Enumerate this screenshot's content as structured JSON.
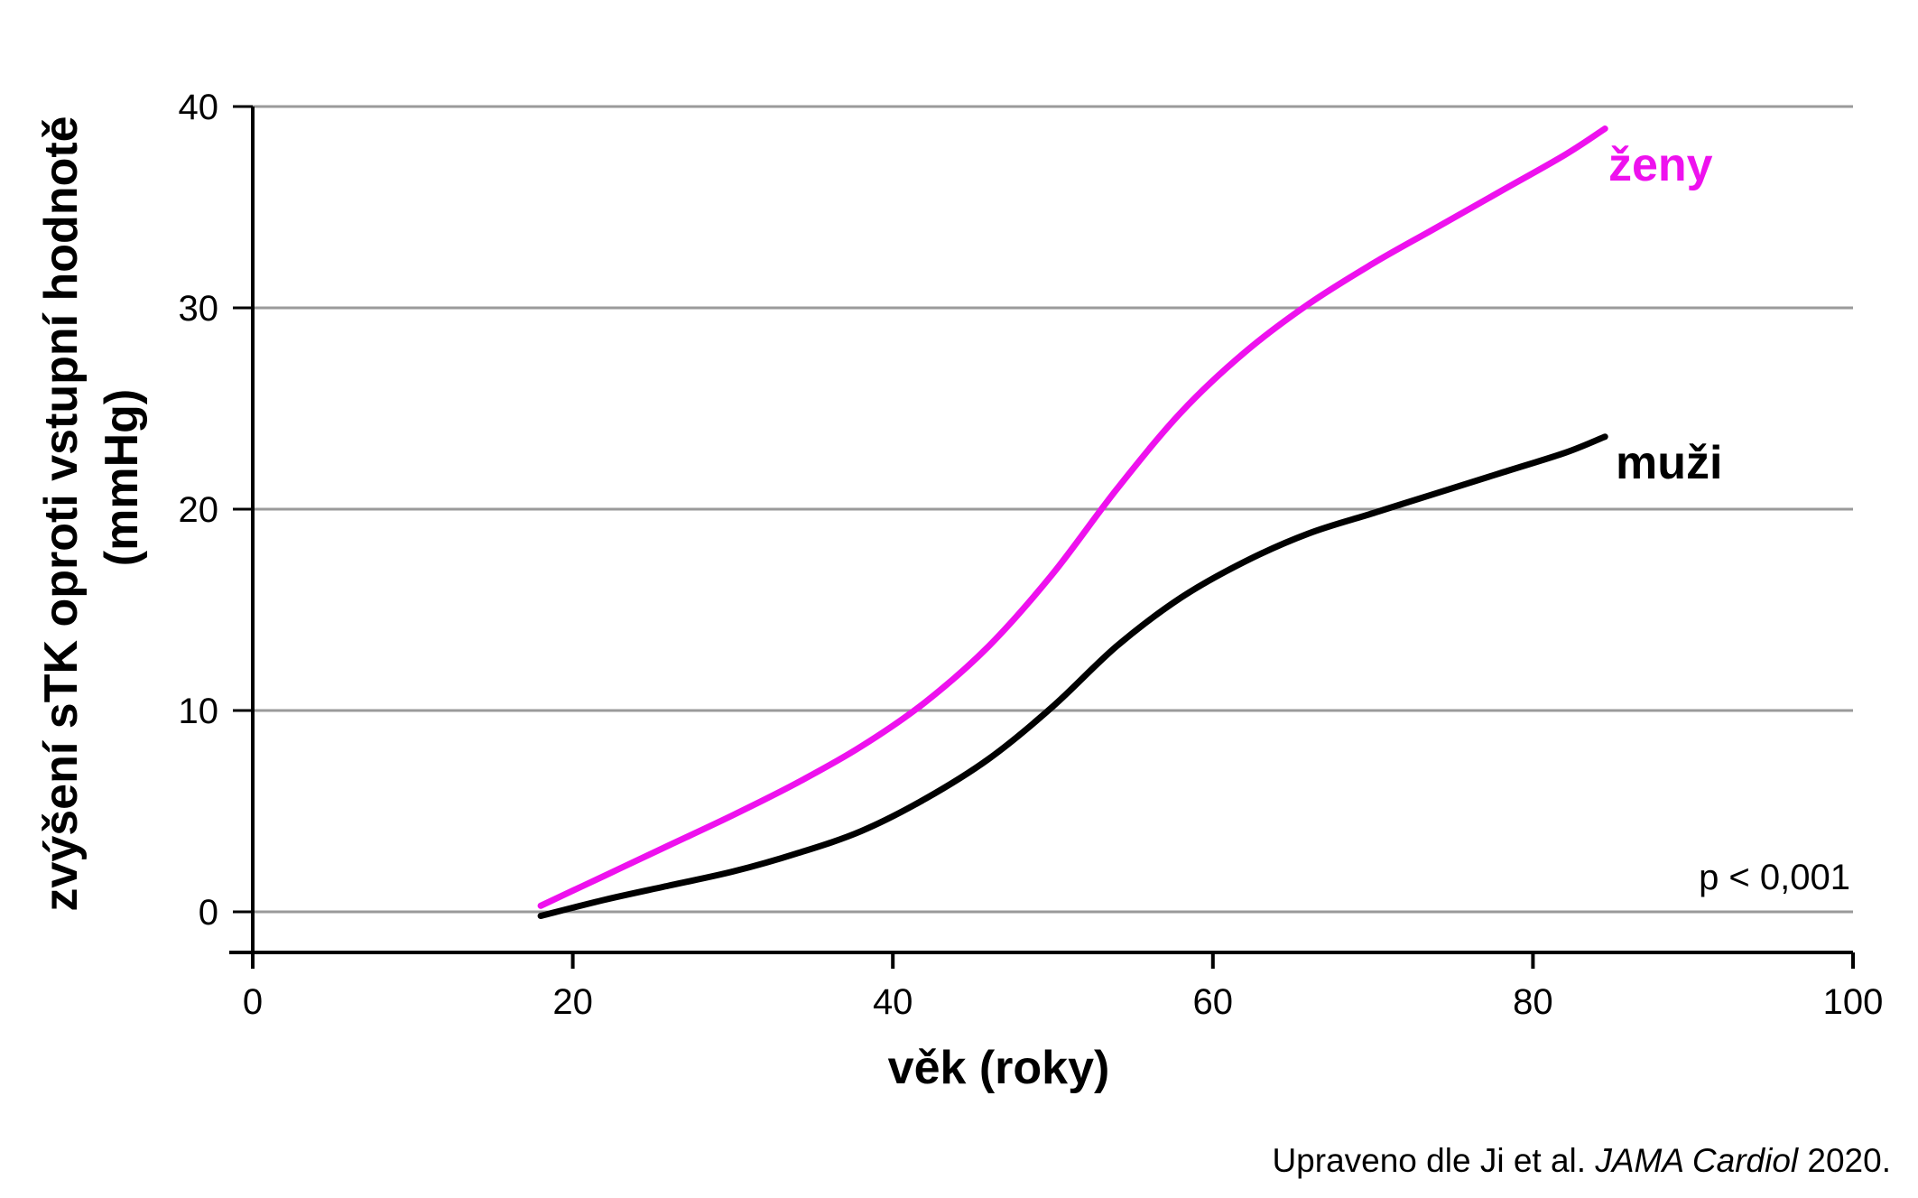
{
  "chart_data": {
    "type": "line",
    "xlabel": "věk (roky)",
    "ylabel": [
      "zvýšení sTK oproti vstupní hodnotě",
      "(mmHg)"
    ],
    "xlim": [
      0,
      100
    ],
    "ylim": [
      -2,
      40
    ],
    "x_ticks": [
      "0",
      "20",
      "40",
      "60",
      "80",
      "100"
    ],
    "y_ticks": [
      "0",
      "10",
      "20",
      "30",
      "40"
    ],
    "grid": "horizontal",
    "series": [
      {
        "name": "ženy",
        "color": "#ee11ee",
        "points": [
          [
            18,
            0.3
          ],
          [
            22,
            1.8
          ],
          [
            26,
            3.3
          ],
          [
            30,
            4.8
          ],
          [
            34,
            6.4
          ],
          [
            38,
            8.2
          ],
          [
            42,
            10.4
          ],
          [
            46,
            13.2
          ],
          [
            50,
            16.8
          ],
          [
            54,
            21.0
          ],
          [
            58,
            24.8
          ],
          [
            62,
            27.8
          ],
          [
            66,
            30.2
          ],
          [
            70,
            32.2
          ],
          [
            74,
            34.0
          ],
          [
            78,
            35.8
          ],
          [
            82,
            37.6
          ],
          [
            84.5,
            38.9
          ]
        ]
      },
      {
        "name": "muži",
        "color": "#000000",
        "points": [
          [
            18,
            -0.2
          ],
          [
            22,
            0.6
          ],
          [
            26,
            1.3
          ],
          [
            30,
            2.0
          ],
          [
            34,
            2.9
          ],
          [
            38,
            4.0
          ],
          [
            42,
            5.6
          ],
          [
            46,
            7.6
          ],
          [
            50,
            10.2
          ],
          [
            54,
            13.2
          ],
          [
            58,
            15.6
          ],
          [
            62,
            17.4
          ],
          [
            66,
            18.8
          ],
          [
            70,
            19.8
          ],
          [
            74,
            20.8
          ],
          [
            78,
            21.8
          ],
          [
            82,
            22.8
          ],
          [
            84.5,
            23.6
          ]
        ]
      }
    ],
    "annotations": {
      "p_value": "p < 0,001"
    },
    "source": {
      "prefix": "Upraveno dle Ji et al. ",
      "journal": "JAMA Cardiol",
      "suffix": " 2020."
    }
  }
}
